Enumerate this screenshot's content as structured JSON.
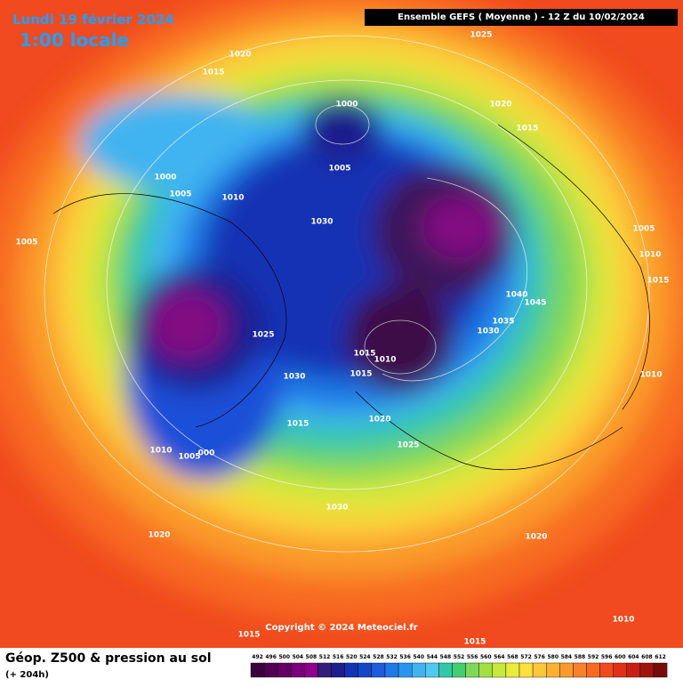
{
  "header": {
    "date": "Lundi 19 février 2024",
    "time": "1:00 locale",
    "run": "Ensemble GEFS  ( Moyenne )  -  12 Z du 10/02/2024"
  },
  "isobar_labels": [
    "1025",
    "1020",
    "1015",
    "1000",
    "1020",
    "1015",
    "1005",
    "1000",
    "1005",
    "1010",
    "1030",
    "1005",
    "1005",
    "1010",
    "1015",
    "1040",
    "1045",
    "1035",
    "1030",
    "1025",
    "1015",
    "1010",
    "1015",
    "1030",
    "1010",
    "1020",
    "1015",
    "1025",
    "1010",
    "1005",
    "000",
    "1030",
    "1020",
    "1020",
    "1010",
    "1015",
    "1015"
  ],
  "copyright": "Copyright © 2024 Meteociel.fr",
  "footer": {
    "title": "Géop. Z500 & pression au sol",
    "lead": "(+ 204h)"
  },
  "scale_labels": [
    "492",
    "496",
    "500",
    "504",
    "508",
    "512",
    "516",
    "520",
    "524",
    "528",
    "532",
    "536",
    "540",
    "544",
    "548",
    "552",
    "556",
    "560",
    "564",
    "568",
    "572",
    "576",
    "580",
    "584",
    "588",
    "592",
    "596",
    "600",
    "604",
    "608",
    "612"
  ]
}
